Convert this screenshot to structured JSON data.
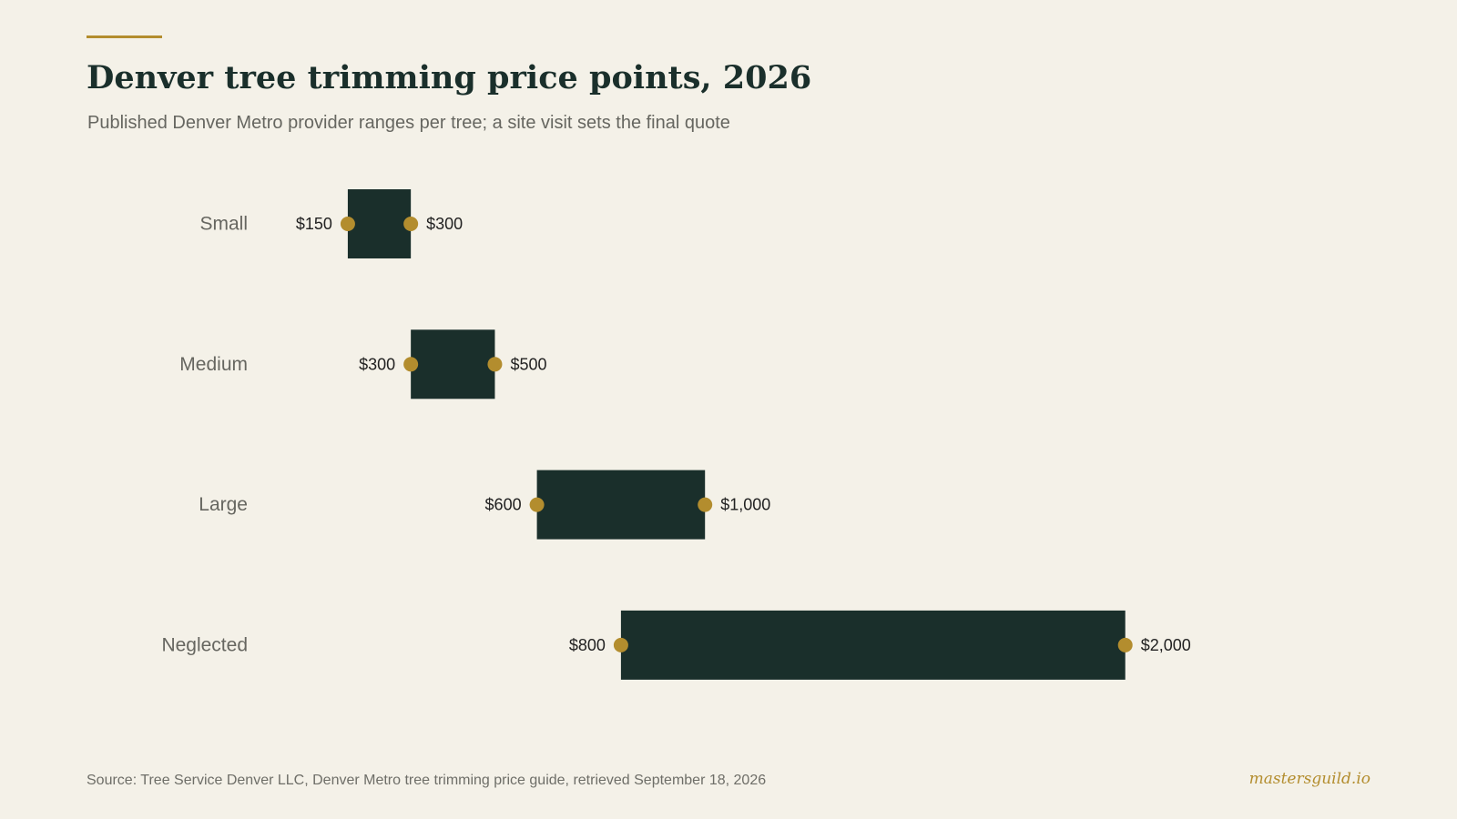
{
  "title": "Denver tree trimming price points, 2026",
  "subtitle": "Published Denver Metro provider ranges per tree; a site visit sets the final quote",
  "source": "Source: Tree Service Denver LLC, Denver Metro tree trimming price guide, retrieved September 18, 2026",
  "brand": "mastersguild.io",
  "colors": {
    "background": "#f4f1e8",
    "bar": "#1a2f2b",
    "marker": "#b38d2e",
    "accent_rule": "#b38d2e"
  },
  "chart_data": {
    "type": "range-bar",
    "title": "Denver tree trimming price points, 2026",
    "subtitle": "Published Denver Metro provider ranges per tree; a site visit sets the final quote",
    "xlabel": "",
    "ylabel": "",
    "unit": "USD per tree",
    "grid": false,
    "legend": "none",
    "xlim": [
      0,
      2200
    ],
    "categories": [
      "Small",
      "Medium",
      "Large",
      "Neglected"
    ],
    "low": [
      150,
      300,
      600,
      800
    ],
    "high": [
      300,
      500,
      1000,
      2000
    ],
    "low_labels": [
      "$150",
      "$300",
      "$600",
      "$800"
    ],
    "high_labels": [
      "$300",
      "$500",
      "$1,000",
      "$2,000"
    ]
  }
}
